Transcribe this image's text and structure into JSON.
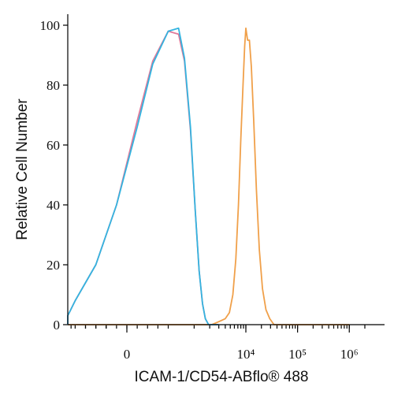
{
  "chart_data": {
    "type": "line",
    "title": "",
    "xlabel": "ICAM-1/CD54-ABflo® 488",
    "ylabel": "Relative Cell Number",
    "ylim": [
      0,
      100
    ],
    "y_ticks": [
      "0",
      "20",
      "40",
      "60",
      "80",
      "100"
    ],
    "x_scale": "biexponential",
    "x_ticks": [
      {
        "label": "0",
        "value": 0
      },
      {
        "label": "10⁴",
        "value": 10000
      },
      {
        "label": "10⁵",
        "value": 100000
      },
      {
        "label": "10⁶",
        "value": 1000000
      }
    ],
    "grid": false,
    "legend": "none",
    "series": [
      {
        "color": "#f0a04a",
        "points": [
          [
            -3000,
            0
          ],
          [
            2200,
            0
          ],
          [
            3000,
            1
          ],
          [
            4000,
            2
          ],
          [
            4800,
            4
          ],
          [
            5600,
            10
          ],
          [
            6400,
            22
          ],
          [
            7200,
            40
          ],
          [
            8000,
            62
          ],
          [
            8800,
            80
          ],
          [
            9500,
            93
          ],
          [
            10000,
            99
          ],
          [
            10800,
            95
          ],
          [
            11700,
            95
          ],
          [
            12800,
            86
          ],
          [
            14200,
            68
          ],
          [
            16000,
            45
          ],
          [
            18200,
            25
          ],
          [
            21000,
            12
          ],
          [
            24500,
            5
          ],
          [
            29000,
            2
          ],
          [
            35000,
            0
          ],
          [
            1000000,
            0
          ]
        ]
      },
      {
        "color": "#e07a9a",
        "points": [
          [
            -3000,
            0
          ],
          [
            -1200,
            0
          ],
          [
            -900,
            1
          ],
          [
            -700,
            3
          ],
          [
            -500,
            8
          ],
          [
            -300,
            20
          ],
          [
            -100,
            40
          ],
          [
            100,
            68
          ],
          [
            250,
            88
          ],
          [
            400,
            98
          ],
          [
            500,
            97
          ],
          [
            650,
            88
          ],
          [
            850,
            65
          ],
          [
            1050,
            38
          ],
          [
            1250,
            18
          ],
          [
            1450,
            7
          ],
          [
            1650,
            2
          ],
          [
            1900,
            0
          ],
          [
            3000,
            0
          ]
        ]
      },
      {
        "color": "#33b4e0",
        "points": [
          [
            -3000,
            0
          ],
          [
            -1200,
            0
          ],
          [
            -900,
            1
          ],
          [
            -700,
            3
          ],
          [
            -500,
            8
          ],
          [
            -300,
            20
          ],
          [
            -100,
            40
          ],
          [
            100,
            66
          ],
          [
            250,
            87
          ],
          [
            400,
            98
          ],
          [
            500,
            99
          ],
          [
            650,
            89
          ],
          [
            850,
            66
          ],
          [
            1050,
            38
          ],
          [
            1250,
            18
          ],
          [
            1450,
            7
          ],
          [
            1650,
            2
          ],
          [
            1900,
            0
          ],
          [
            3000,
            0
          ]
        ]
      }
    ]
  }
}
